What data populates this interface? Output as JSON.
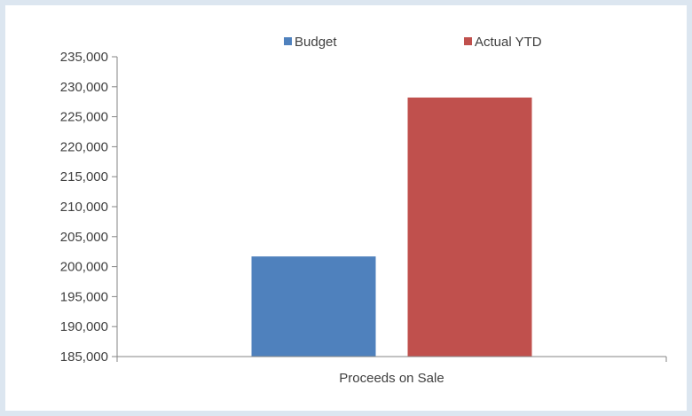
{
  "chart_data": {
    "type": "bar",
    "categories": [
      "Proceeds on Sale"
    ],
    "series": [
      {
        "name": "Budget",
        "values": [
          201700
        ],
        "color": "#4f81bd"
      },
      {
        "name": "Actual YTD",
        "values": [
          228200
        ],
        "color": "#c0504d"
      }
    ],
    "ylim": [
      185000,
      235000
    ],
    "yticks": [
      "185,000",
      "190,000",
      "195,000",
      "200,000",
      "205,000",
      "210,000",
      "215,000",
      "220,000",
      "225,000",
      "230,000",
      "235,000"
    ],
    "grid": false,
    "legend_position": "top"
  },
  "colors": {
    "background": "#dce6f0",
    "axis": "#868686",
    "text": "#404040"
  }
}
